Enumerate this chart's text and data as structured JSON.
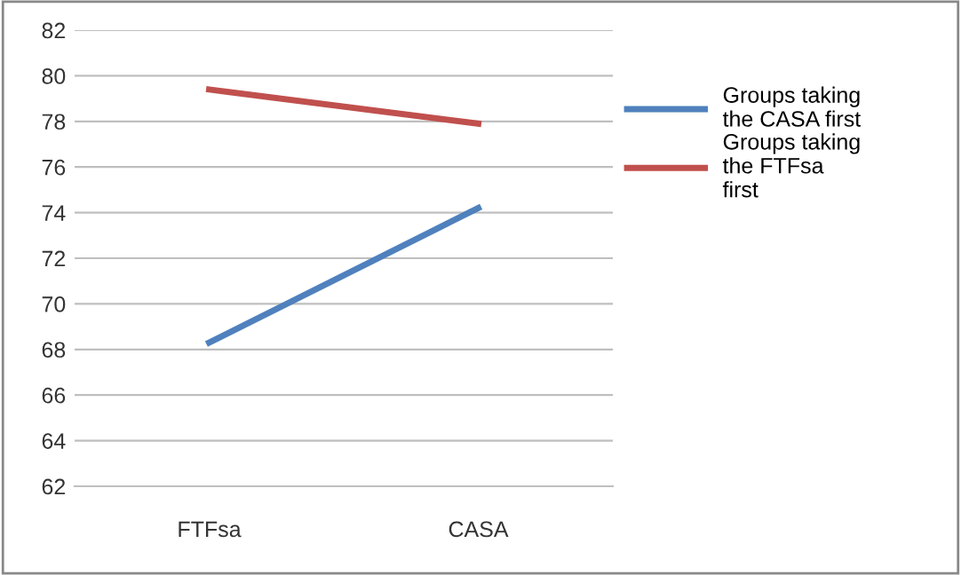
{
  "chart_data": {
    "type": "line",
    "categories": [
      "FTFsa",
      "CASA"
    ],
    "series": [
      {
        "name": "Groups taking the CASA first",
        "color": "#4f81bd",
        "values": [
          68.3,
          74.2
        ]
      },
      {
        "name": "Groups taking the FTFsa first",
        "color": "#c0504d",
        "values": [
          79.4,
          77.9
        ]
      }
    ],
    "ylim": [
      62,
      82
    ],
    "yticks": [
      62,
      64,
      66,
      68,
      70,
      72,
      74,
      76,
      78,
      80,
      82
    ],
    "grid": "y",
    "legend": "right",
    "marker": "none",
    "line_style": "solid"
  }
}
